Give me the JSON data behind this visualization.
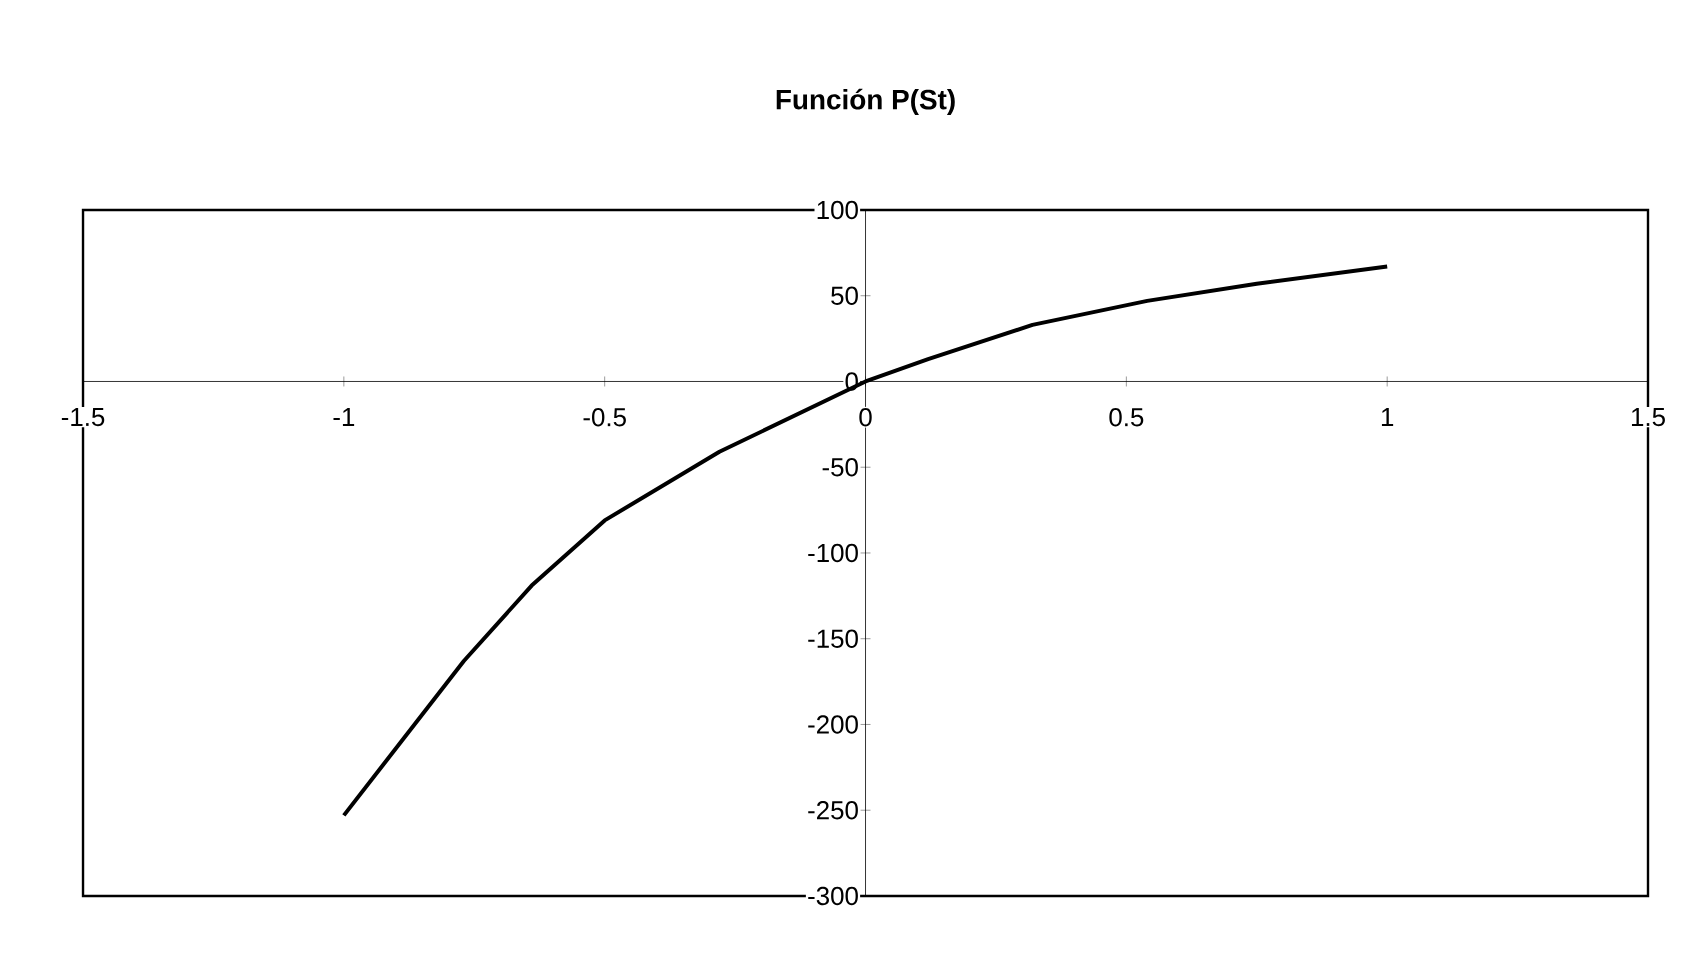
{
  "chart_data": {
    "type": "line",
    "title": "Función P(St)",
    "x": [
      -1,
      -0.77,
      -0.64,
      -0.5,
      -0.28,
      0,
      0.12,
      0.32,
      0.54,
      0.75,
      1
    ],
    "values": [
      -253,
      -163,
      -119,
      -81,
      -41,
      0,
      13,
      33,
      47,
      57,
      67
    ],
    "color": "#000000",
    "xlim": [
      -1.5,
      1.5
    ],
    "xticks": [
      -1.5,
      -1,
      -0.5,
      0,
      0.5,
      1,
      1.5
    ],
    "ylim": [
      -300,
      100
    ],
    "yticks": [
      -300,
      -250,
      -200,
      -150,
      -100,
      -50,
      0,
      50,
      100
    ],
    "grid": false,
    "marker": "none",
    "line_style": "solid"
  }
}
